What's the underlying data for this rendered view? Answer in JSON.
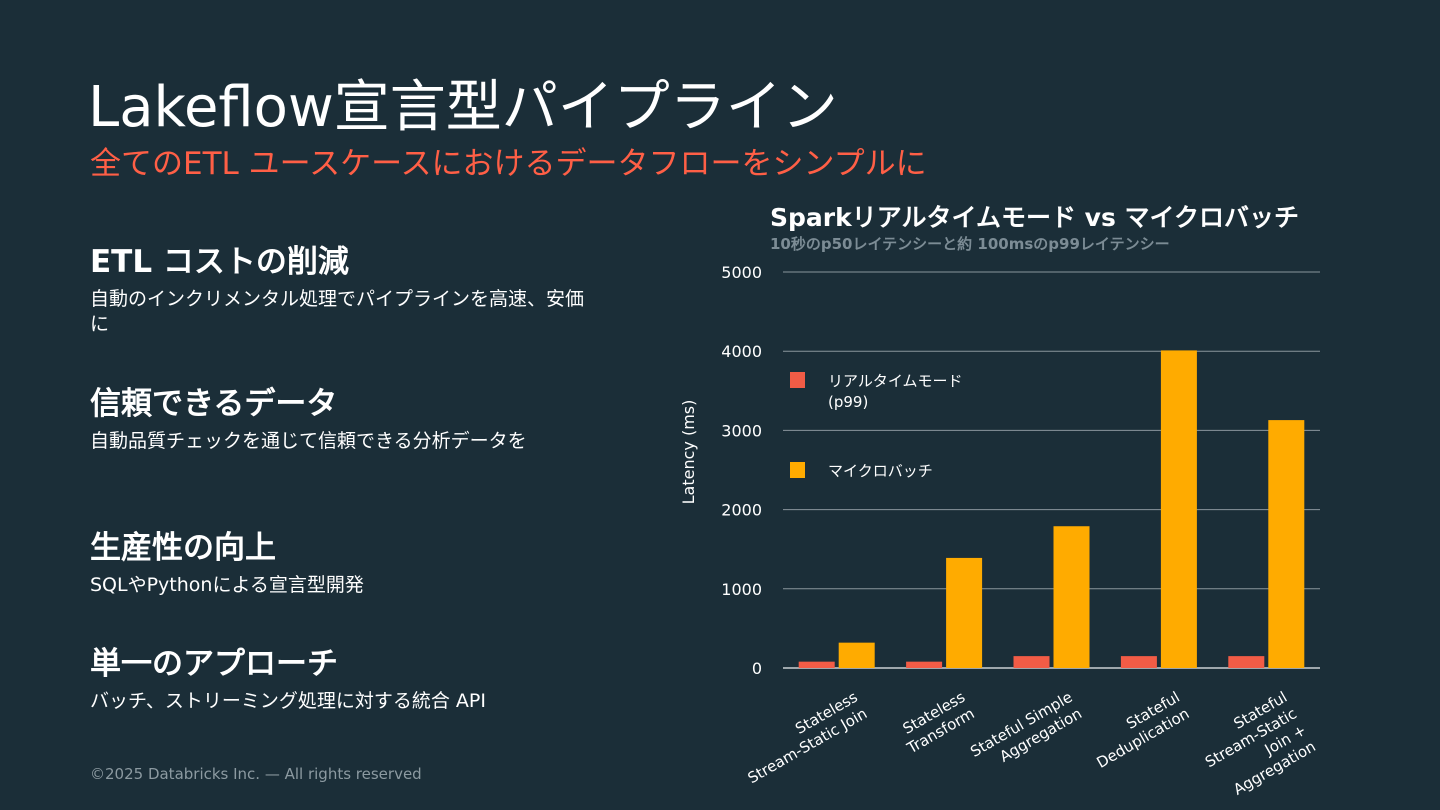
{
  "slide": {
    "title": "Lakeflow宣言型パイプライン",
    "subtitle": "全てのETL ユースケースにおけるデータフローをシンプルに",
    "footer": "©2025 Databricks Inc. — All rights reserved"
  },
  "features": [
    {
      "heading": "ETL コストの削減",
      "body": "自動のインクリメンタル処理でパイプラインを高速、安価に"
    },
    {
      "heading": "信頼できるデータ",
      "body": "自動品質チェックを通じて信頼できる分析データを"
    },
    {
      "heading": "生産性の向上",
      "body": "SQLやPythonによる宣言型開発"
    },
    {
      "heading": "単一のアプローチ",
      "body": "バッチ、ストリーミング処理に対する統合  API"
    }
  ],
  "chart_data": {
    "type": "bar",
    "title": "Sparkリアルタイムモード  vs マイクロバッチ",
    "subtitle": "10秒のp50レイテンシーと約 100msのp99レイテンシー",
    "ylabel": "Latency (ms)",
    "ylim": [
      0,
      5000
    ],
    "yticks": [
      0,
      1000,
      2000,
      3000,
      4000,
      5000
    ],
    "grid": true,
    "legend_position": "top-left",
    "categories": [
      [
        "Stateless",
        "Stream-Static Join"
      ],
      [
        "Stateless",
        "Transform"
      ],
      [
        "Stateful Simple",
        "Aggregation"
      ],
      [
        "Stateful",
        "Deduplication"
      ],
      [
        "Stateful",
        "Stream-Static",
        "Join +",
        "Aggregation"
      ]
    ],
    "series": [
      {
        "name": "リアルタイムモード\n(p99)",
        "color": "#f25c46",
        "values": [
          80,
          80,
          150,
          150,
          150
        ]
      },
      {
        "name": "マイクロバッチ",
        "color": "#ffab00",
        "values": [
          320,
          1390,
          1790,
          4010,
          3130
        ]
      }
    ]
  }
}
